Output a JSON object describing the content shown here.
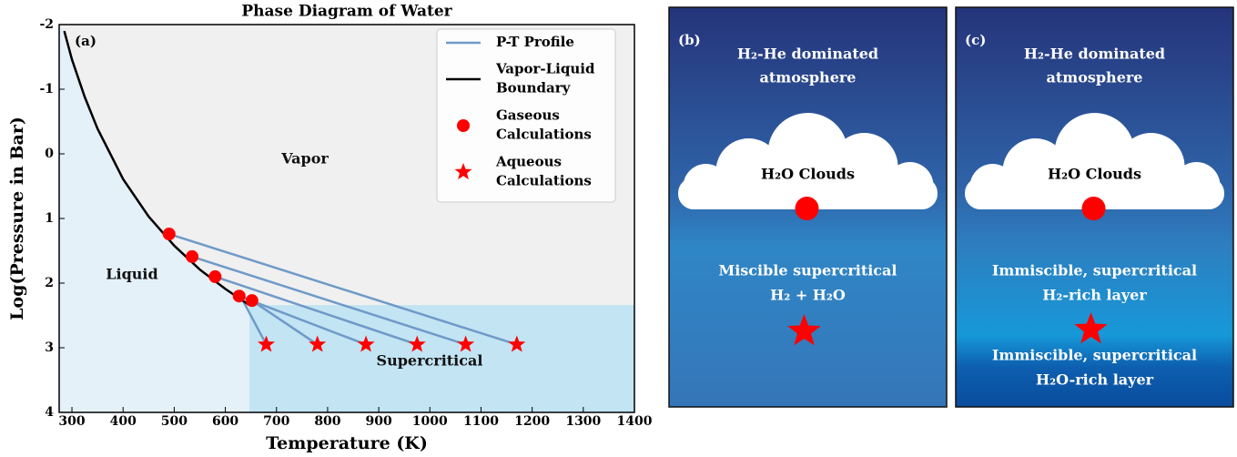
{
  "chart_data": {
    "type": "line",
    "title": "Phase Diagram of Water",
    "panel_label": "(a)",
    "x_label": "Temperature (K)",
    "y_label": "Log(Pressure in Bar)",
    "xlim": [
      275,
      1400
    ],
    "xticks": [
      300,
      400,
      500,
      600,
      700,
      800,
      900,
      1000,
      1100,
      1200,
      1300,
      1400
    ],
    "ylim": [
      4,
      -2
    ],
    "yticks": [
      -2,
      -1,
      0,
      1,
      2,
      3,
      4
    ],
    "region_labels": [
      "Vapor",
      "Liquid",
      "Supercritical"
    ],
    "region_colors": [
      "#f0f0f0",
      "#e4f1f8",
      "#c2e4f3"
    ],
    "legend": "upper right",
    "series": [
      {
        "name": "P-T Profile",
        "color": "#6f9ac8",
        "segments": [
          {
            "x": [
              490,
              1170
            ],
            "values": [
              1.24,
              2.95
            ]
          },
          {
            "x": [
              535,
              1070
            ],
            "values": [
              1.59,
              2.95
            ]
          },
          {
            "x": [
              580,
              975
            ],
            "values": [
              1.9,
              2.95
            ]
          },
          {
            "x": [
              627,
              875
            ],
            "values": [
              2.2,
              2.95
            ]
          },
          {
            "x": [
              652,
              780
            ],
            "values": [
              2.27,
              2.95
            ]
          },
          {
            "x": [
              635,
              680
            ],
            "values": [
              2.28,
              2.95
            ]
          }
        ]
      },
      {
        "name": "Vapor-Liquid Boundary",
        "color": "#000000",
        "x": [
          285,
          300,
          325,
          350,
          375,
          400,
          450,
          500,
          550,
          600,
          647
        ],
        "values": [
          -1.9,
          -1.46,
          -0.88,
          -0.39,
          0.0,
          0.39,
          0.97,
          1.42,
          1.79,
          2.09,
          2.34
        ]
      },
      {
        "name": "Gaseous Calculations",
        "color": "#ff0000",
        "marker": "circle",
        "x": [
          490,
          535,
          580,
          627,
          652
        ],
        "values": [
          1.24,
          1.59,
          1.9,
          2.2,
          2.27
        ]
      },
      {
        "name": "Aqueous Calculations",
        "color": "#ff0000",
        "marker": "star",
        "x": [
          680,
          780,
          875,
          975,
          1070,
          1170
        ],
        "values": [
          2.95,
          2.95,
          2.95,
          2.95,
          2.95,
          2.95
        ]
      }
    ]
  },
  "panels": [
    {
      "label": "(b)",
      "top": [
        "H₂-He dominated",
        "atmosphere"
      ],
      "cloud": "H₂O Clouds",
      "layers": [
        [
          "Miscible supercritical",
          "H₂ + H₂O"
        ]
      ]
    },
    {
      "label": "(c)",
      "top": [
        "H₂-He dominated",
        "atmosphere"
      ],
      "cloud": "H₂O Clouds",
      "layers": [
        [
          "Immiscible, supercritical",
          "H₂-rich layer"
        ],
        [
          "Immiscible, supercritical",
          "H₂O-rich layer"
        ]
      ]
    }
  ]
}
